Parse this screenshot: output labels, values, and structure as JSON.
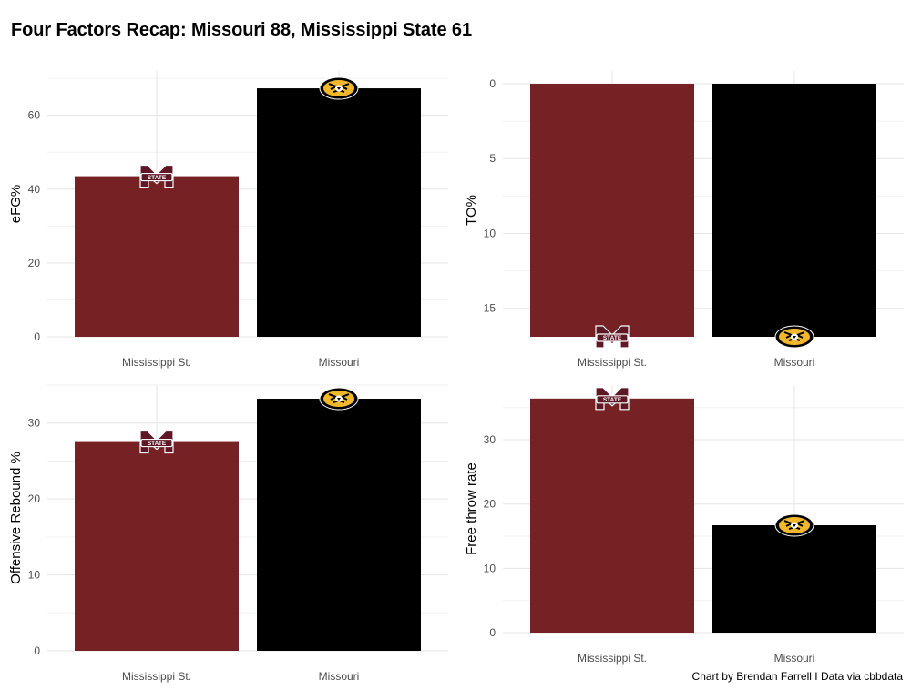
{
  "title": "Four Factors Recap: Missouri 88, Mississippi State 61",
  "caption": "Chart by Brendan Farrell I Data via cbbdata",
  "colors": {
    "mississippi_state": "#762123",
    "missouri": "#000000",
    "mizzou_gold": "#f1b82d",
    "msu_logo_maroon": "#5d1725"
  },
  "icons": {
    "mississippi_state": "msu-state-m-logo-icon",
    "missouri": "mizzou-tiger-logo-icon"
  },
  "chart_data": [
    {
      "type": "bar",
      "ylabel": "eFG%",
      "categories": [
        "Mississippi St.",
        "Missouri"
      ],
      "values": [
        43.5,
        67.3
      ],
      "ylim": [
        0,
        72
      ],
      "yticks": [
        0,
        20,
        40,
        60
      ],
      "y_reversed": false,
      "grid": true
    },
    {
      "type": "bar",
      "ylabel": "TO%",
      "categories": [
        "Mississippi St.",
        "Missouri"
      ],
      "values": [
        16.9,
        16.9
      ],
      "ylim": [
        0,
        16.9
      ],
      "yticks": [
        0,
        5,
        10,
        15
      ],
      "y_reversed": true,
      "grid": true
    },
    {
      "type": "bar",
      "ylabel": "Offensive Rebound %",
      "categories": [
        "Mississippi St.",
        "Missouri"
      ],
      "values": [
        27.5,
        33.2
      ],
      "ylim": [
        0,
        35
      ],
      "yticks": [
        0,
        10,
        20,
        30
      ],
      "y_reversed": false,
      "grid": true
    },
    {
      "type": "bar",
      "ylabel": "Free throw rate",
      "categories": [
        "Mississippi St.",
        "Missouri"
      ],
      "values": [
        36.4,
        16.7
      ],
      "ylim": [
        0,
        38.5
      ],
      "yticks": [
        0,
        10,
        20,
        30
      ],
      "y_reversed": false,
      "grid": true
    }
  ]
}
